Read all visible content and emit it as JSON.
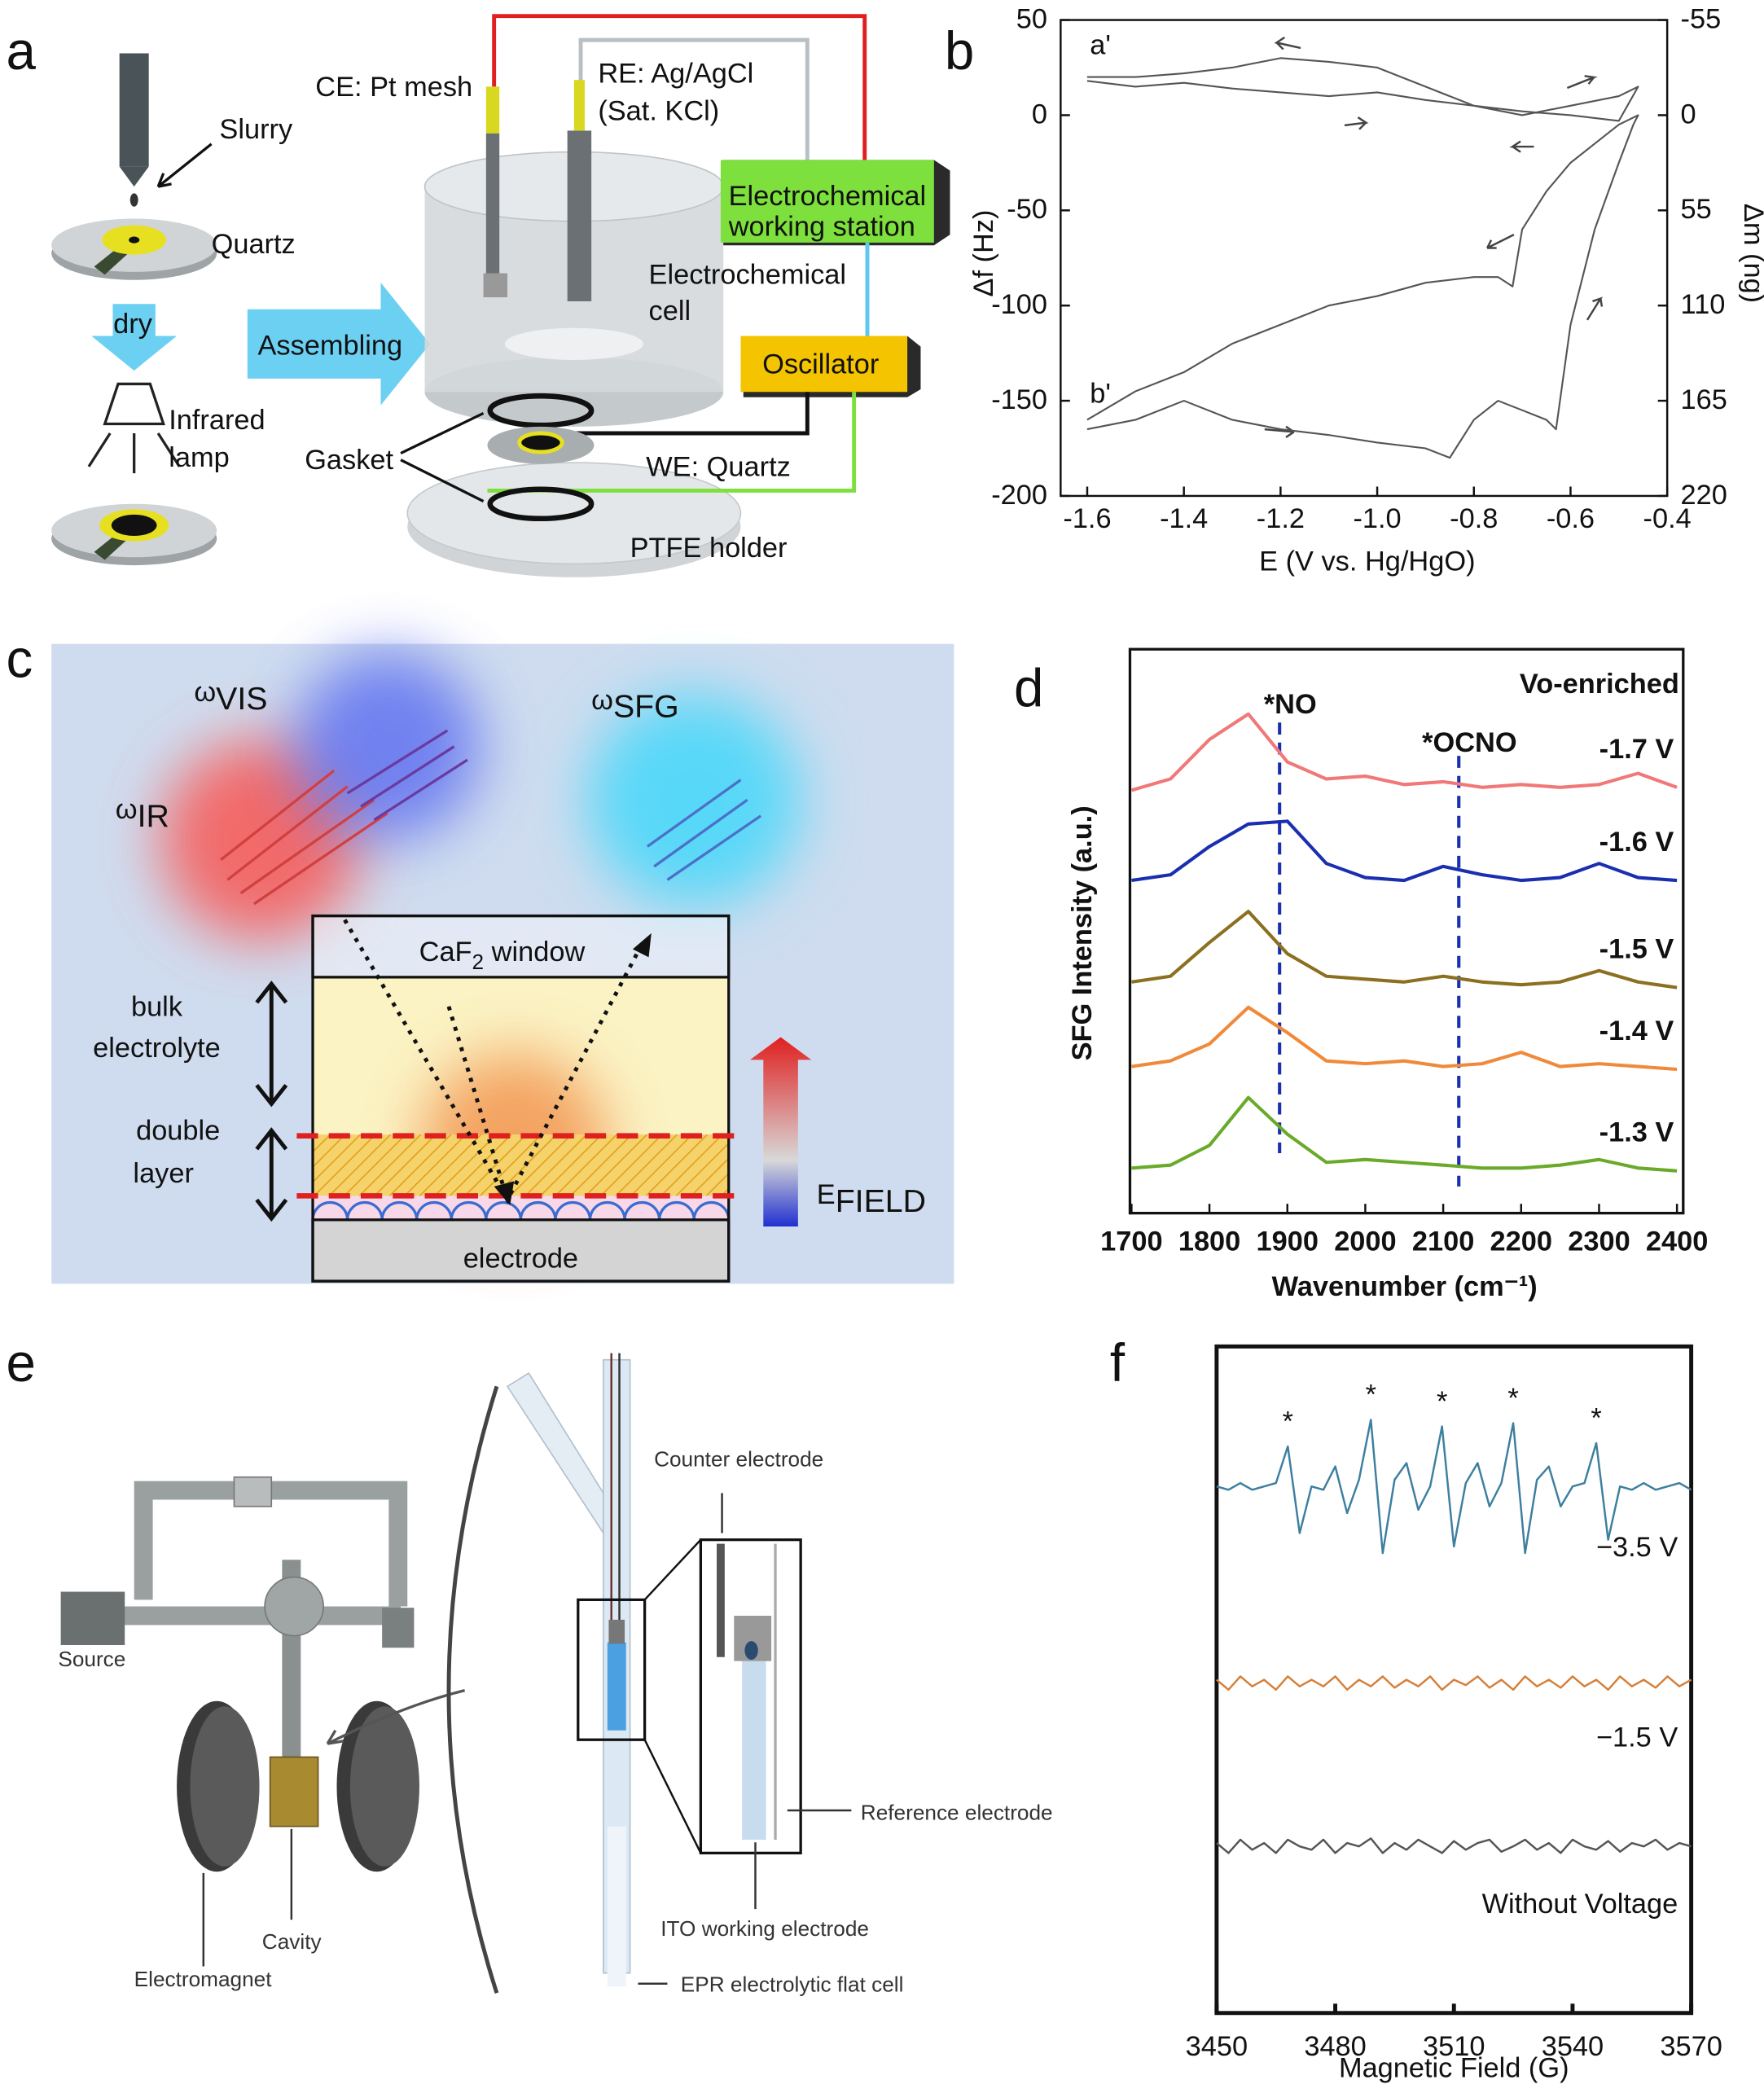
{
  "figure": {
    "panel_labels": [
      "a",
      "b",
      "c",
      "d",
      "e",
      "f"
    ],
    "a": {
      "slurry": "Slurry",
      "quartz": "Quartz",
      "dry": "dry",
      "lamp": [
        "Infrared",
        "lamp"
      ],
      "assembling": "Assembling",
      "ce": "CE: Pt mesh",
      "re": [
        "RE: Ag/AgCl",
        "(Sat. KCl)"
      ],
      "station": [
        "Electrochemical",
        "working station"
      ],
      "cell": [
        "Electrochemical",
        "cell"
      ],
      "oscillator": "Oscillator",
      "gasket": "Gasket",
      "we": "WE: Quartz",
      "holder": "PTFE holder"
    },
    "c": {
      "omega_vis": [
        "ω",
        "VIS"
      ],
      "omega_sfg": [
        "ω",
        "SFG"
      ],
      "omega_ir": [
        "ω",
        "IR"
      ],
      "window": [
        "CaF",
        "2",
        " window"
      ],
      "bulk": [
        "bulk",
        "electrolyte"
      ],
      "double": [
        "double",
        "layer"
      ],
      "electrode": "electrode",
      "efield": [
        "E",
        "FIELD"
      ]
    },
    "e": {
      "source": "Source",
      "counter": "Counter electrode",
      "reference": "Reference electrode",
      "ito": "ITO working electrode",
      "cavity": "Cavity",
      "magnet": "Electromagnet",
      "cell": "EPR electrolytic flat cell"
    }
  },
  "chart_data": [
    {
      "type": "line",
      "xlabel": "E (V vs. Hg/HgO)",
      "ylabel": "Δf (Hz)",
      "y2label": "Δm (ng)",
      "xlim": [
        -1.655,
        -0.4
      ],
      "ylim": [
        -200,
        50
      ],
      "y2lim": [
        220,
        -55
      ],
      "xticks": [
        -1.6,
        -1.4,
        -1.2,
        {
          "value": -1,
          "label": "-1.0"
        },
        -0.8,
        -0.6,
        -0.4
      ],
      "yticks": [
        50,
        0,
        -50,
        -100,
        -150,
        -200
      ],
      "y2ticks": [
        -55,
        0,
        55,
        110,
        165,
        220
      ],
      "series": [
        {
          "name": "a'",
          "color": "#555555",
          "x": [
            -1.6,
            -1.5,
            -1.4,
            -1.3,
            -1.2,
            -1.1,
            -1.0,
            -0.9,
            -0.8,
            -0.7,
            -0.6,
            -0.5,
            -0.46,
            -0.5,
            -0.6,
            -0.7,
            -0.8,
            -0.9,
            -1.0,
            -1.1,
            -1.2,
            -1.3,
            -1.4,
            -1.5,
            -1.6
          ],
          "values": [
            18,
            15,
            17,
            14,
            12,
            10,
            12,
            8,
            5,
            2,
            0,
            -3,
            15,
            10,
            5,
            0,
            5,
            15,
            25,
            28,
            30,
            25,
            22,
            20,
            20
          ]
        },
        {
          "name": "b'",
          "color": "#555555",
          "x": [
            -1.6,
            -1.5,
            -1.4,
            -1.3,
            -1.2,
            -1.1,
            -1.0,
            -0.9,
            -0.85,
            -0.8,
            -0.75,
            -0.7,
            -0.65,
            -0.63,
            -0.6,
            -0.55,
            -0.5,
            -0.47,
            -0.46,
            -0.5,
            -0.55,
            -0.6,
            -0.65,
            -0.7,
            -0.72,
            -0.75,
            -0.8,
            -0.9,
            -1.0,
            -1.1,
            -1.2,
            -1.3,
            -1.4,
            -1.5,
            -1.6
          ],
          "values": [
            -165,
            -160,
            -150,
            -160,
            -165,
            -168,
            -172,
            -175,
            -180,
            -160,
            -150,
            -155,
            -160,
            -165,
            -110,
            -60,
            -25,
            -5,
            0,
            -5,
            -15,
            -25,
            -40,
            -60,
            -90,
            -85,
            -85,
            -88,
            -95,
            -100,
            -110,
            -120,
            -135,
            -145,
            -160
          ]
        }
      ]
    },
    {
      "type": "line",
      "xlabel": "Wavenumber (cm⁻¹)",
      "ylabel": "SFG Intensity (a.u.)",
      "annotation": "Vo-enriched",
      "xlim": [
        1698,
        2408
      ],
      "ylim": [
        0,
        10
      ],
      "xticks": [
        1700,
        1800,
        1900,
        2000,
        2100,
        2200,
        2300,
        2400
      ],
      "x": [
        1700,
        1750,
        1800,
        1850,
        1900,
        1950,
        2000,
        2050,
        2100,
        2150,
        2200,
        2250,
        2300,
        2350,
        2400
      ],
      "reference_lines": [
        {
          "label": "*NO",
          "x": 1890
        },
        {
          "label": "*OCNO",
          "x": 2120
        }
      ],
      "series": [
        {
          "name": "-1.7 V",
          "color": "#f07878",
          "values": [
            7.5,
            7.7,
            8.4,
            8.85,
            8.0,
            7.7,
            7.75,
            7.6,
            7.65,
            7.55,
            7.6,
            7.55,
            7.6,
            7.8,
            7.55
          ]
        },
        {
          "name": "-1.6 V",
          "color": "#1a2fb0",
          "values": [
            5.9,
            6.0,
            6.5,
            6.9,
            6.95,
            6.2,
            5.95,
            5.9,
            6.15,
            6.0,
            5.9,
            5.95,
            6.2,
            5.95,
            5.9
          ]
        },
        {
          "name": "-1.5 V",
          "color": "#8a7020",
          "values": [
            4.1,
            4.2,
            4.8,
            5.35,
            4.6,
            4.2,
            4.15,
            4.1,
            4.2,
            4.1,
            4.05,
            4.1,
            4.3,
            4.1,
            4.0
          ]
        },
        {
          "name": "-1.4 V",
          "color": "#f08a3a",
          "values": [
            2.6,
            2.7,
            3.0,
            3.65,
            3.2,
            2.7,
            2.65,
            2.7,
            2.6,
            2.65,
            2.85,
            2.6,
            2.65,
            2.6,
            2.55
          ]
        },
        {
          "name": "-1.3 V",
          "color": "#6aaa2a",
          "values": [
            0.8,
            0.85,
            1.2,
            2.05,
            1.4,
            0.9,
            0.95,
            0.9,
            0.85,
            0.8,
            0.8,
            0.85,
            0.95,
            0.8,
            0.75
          ]
        }
      ]
    },
    {
      "type": "line",
      "xlabel": "Magnetic Field (G)",
      "xlim": [
        3450,
        3570
      ],
      "ylim": [
        0,
        10
      ],
      "xticks": [
        3450,
        3480,
        3510,
        3540,
        3570
      ],
      "x": [
        3450,
        3453,
        3456,
        3459,
        3462,
        3465,
        3468,
        3471,
        3474,
        3477,
        3480,
        3483,
        3486,
        3489,
        3492,
        3495,
        3498,
        3501,
        3504,
        3507,
        3510,
        3513,
        3516,
        3519,
        3522,
        3525,
        3528,
        3531,
        3534,
        3537,
        3540,
        3543,
        3546,
        3549,
        3552,
        3555,
        3558,
        3561,
        3564,
        3567,
        3570
      ],
      "peak_markers": [
        {
          "label": "*",
          "x": 3468
        },
        {
          "label": "*",
          "x": 3489
        },
        {
          "label": "*",
          "x": 3507
        },
        {
          "label": "*",
          "x": 3525
        },
        {
          "label": "*",
          "x": 3546
        }
      ],
      "series": [
        {
          "name": "−3.5 V",
          "color": "#3d7fa0",
          "values": [
            7.9,
            7.85,
            7.95,
            7.85,
            7.9,
            7.95,
            8.5,
            7.2,
            7.9,
            7.85,
            8.2,
            7.5,
            8.0,
            8.9,
            6.9,
            8.0,
            8.25,
            7.55,
            7.9,
            8.8,
            7.0,
            7.95,
            8.25,
            7.6,
            7.95,
            8.85,
            6.9,
            8.0,
            8.2,
            7.6,
            7.9,
            7.95,
            8.55,
            7.1,
            7.9,
            7.85,
            7.95,
            7.85,
            7.9,
            7.95,
            7.85
          ]
        },
        {
          "name": "−1.5 V",
          "color": "#d4803a",
          "values": [
            5.0,
            4.85,
            5.05,
            4.9,
            5.0,
            4.85,
            5.05,
            4.9,
            5.0,
            4.9,
            5.05,
            4.85,
            5.0,
            4.9,
            5.05,
            4.88,
            5.0,
            4.9,
            5.05,
            4.85,
            5.0,
            4.92,
            5.05,
            4.88,
            5.0,
            4.85,
            5.05,
            4.9,
            5.0,
            4.88,
            5.05,
            4.9,
            5.0,
            4.85,
            5.05,
            4.9,
            5.0,
            4.88,
            5.05,
            4.9,
            5.0
          ]
        },
        {
          "name": "Without Voltage",
          "color": "#555555",
          "values": [
            2.55,
            2.4,
            2.6,
            2.45,
            2.55,
            2.4,
            2.6,
            2.5,
            2.45,
            2.6,
            2.4,
            2.55,
            2.5,
            2.62,
            2.4,
            2.55,
            2.45,
            2.6,
            2.5,
            2.4,
            2.58,
            2.45,
            2.55,
            2.6,
            2.42,
            2.5,
            2.6,
            2.45,
            2.55,
            2.4,
            2.6,
            2.5,
            2.45,
            2.58,
            2.42,
            2.55,
            2.5,
            2.6,
            2.45,
            2.55,
            2.5
          ]
        }
      ]
    }
  ]
}
